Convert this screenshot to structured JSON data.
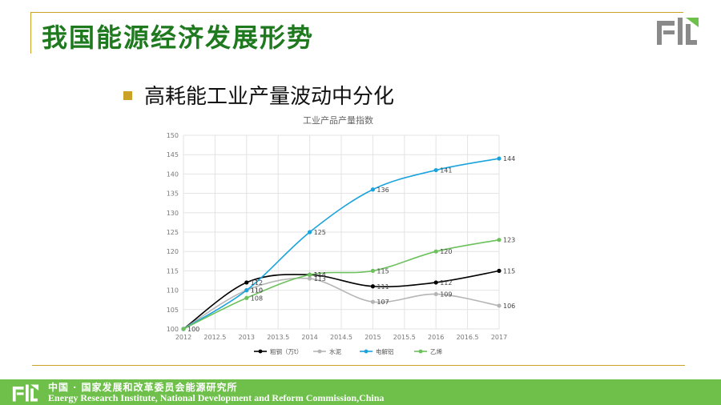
{
  "slide": {
    "title": "我国能源经济发展形势",
    "bullet": "高耗能工业产量波动中分化"
  },
  "footer": {
    "cn": "中国 · 国家发展和改革委员会能源研究所",
    "en": "Energy Research Institute, National Development and Reform Commission,China"
  },
  "chart_data": {
    "type": "line",
    "title": "工业产品产量指数",
    "xlabel": "",
    "ylabel": "",
    "xlim": [
      2012,
      2017
    ],
    "ylim": [
      100,
      150
    ],
    "x_ticks": [
      "2012",
      "2012.5",
      "2013",
      "2013.5",
      "2014",
      "2014.5",
      "2015",
      "2015.5",
      "2016",
      "2016.5",
      "2017"
    ],
    "y_ticks": [
      "100",
      "105",
      "110",
      "115",
      "120",
      "125",
      "130",
      "135",
      "140",
      "145",
      "150"
    ],
    "grid": true,
    "legend_position": "bottom",
    "x": [
      2012,
      2013,
      2014,
      2015,
      2016,
      2017
    ],
    "series": [
      {
        "name": "粗钢（万t）",
        "color": "#000000",
        "values": [
          100,
          112,
          114,
          111,
          112,
          115
        ],
        "labels": [
          "100",
          "112",
          "114",
          "111",
          "112",
          "115"
        ]
      },
      {
        "name": "水泥",
        "color": "#b5b5b5",
        "values": [
          100,
          110,
          113,
          107,
          109,
          106
        ],
        "labels": [
          "",
          "110",
          "113",
          "107",
          "109",
          "106"
        ]
      },
      {
        "name": "电解铝",
        "color": "#1aa3dd",
        "values": [
          100,
          110,
          125,
          136,
          141,
          144
        ],
        "labels": [
          "",
          "110",
          "125",
          "136",
          "141",
          "144"
        ]
      },
      {
        "name": "乙烯",
        "color": "#6cc15c",
        "values": [
          100,
          108,
          114,
          115,
          120,
          123
        ],
        "labels": [
          "",
          "108",
          "114",
          "115",
          "120",
          "123"
        ]
      }
    ]
  }
}
